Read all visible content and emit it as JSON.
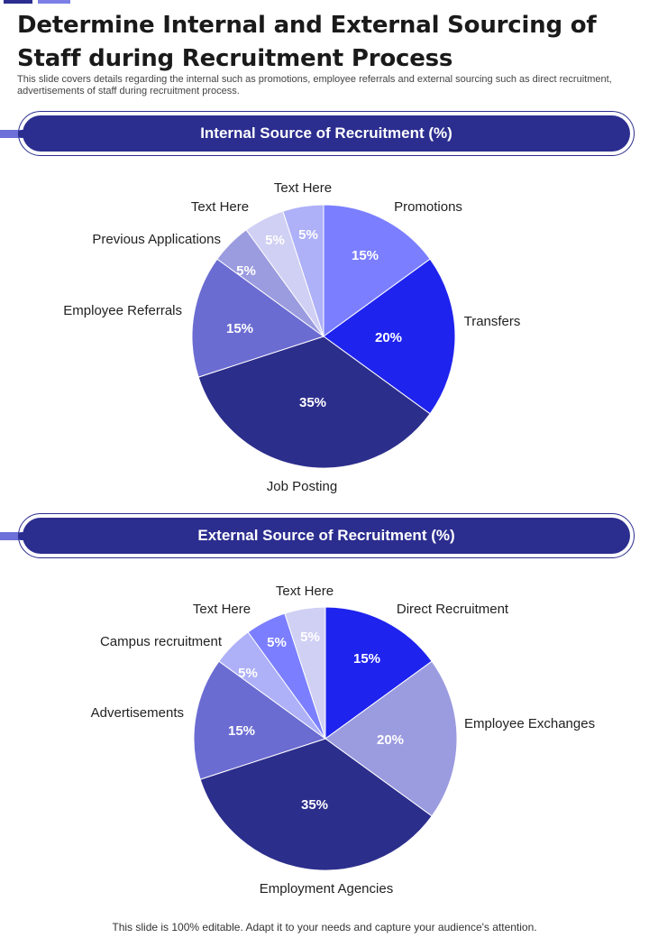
{
  "page": {
    "title": "Determine Internal and External Sourcing of Staff during Recruitment Process",
    "subtitle": "This slide covers details regarding the internal such as promotions, employee referrals and external sourcing such as direct recruitment, advertisements of staff during recruitment process.",
    "footer": "This slide is 100% editable. Adapt it to your needs and capture your audience's attention."
  },
  "colors": {
    "primary": "#2b2d8f",
    "accent": "#6c70d8"
  },
  "chart_data": [
    {
      "type": "pie",
      "title": "Internal Source of Recruitment (%)",
      "categories": [
        "Promotions",
        "Transfers",
        "Job Posting",
        "Employee Referrals",
        "Previous Applications",
        "Text Here",
        "Text Here"
      ],
      "values": [
        15,
        20,
        35,
        15,
        5,
        5,
        5
      ],
      "value_labels": [
        "15%",
        "20%",
        "35%",
        "15%",
        "5%",
        "5%",
        "5%"
      ],
      "colors": [
        "#7b7fff",
        "#1f23ee",
        "#2c2e8c",
        "#6b6cd2",
        "#9b9be0",
        "#d0d0f4",
        "#aeb0f8"
      ]
    },
    {
      "type": "pie",
      "title": "External Source of Recruitment (%)",
      "categories": [
        "Direct Recruitment",
        "Employee Exchanges",
        "Employment Agencies",
        "Advertisements",
        "Campus recruitment",
        "Text Here",
        "Text Here"
      ],
      "values": [
        15,
        20,
        35,
        15,
        5,
        5,
        5
      ],
      "value_labels": [
        "15%",
        "20%",
        "35%",
        "15%",
        "5%",
        "5%",
        "5%"
      ],
      "colors": [
        "#1f23ee",
        "#9b9be0",
        "#2c2e8c",
        "#6b6cd2",
        "#aeb0f8",
        "#7b7fff",
        "#d0d0f4"
      ]
    }
  ]
}
